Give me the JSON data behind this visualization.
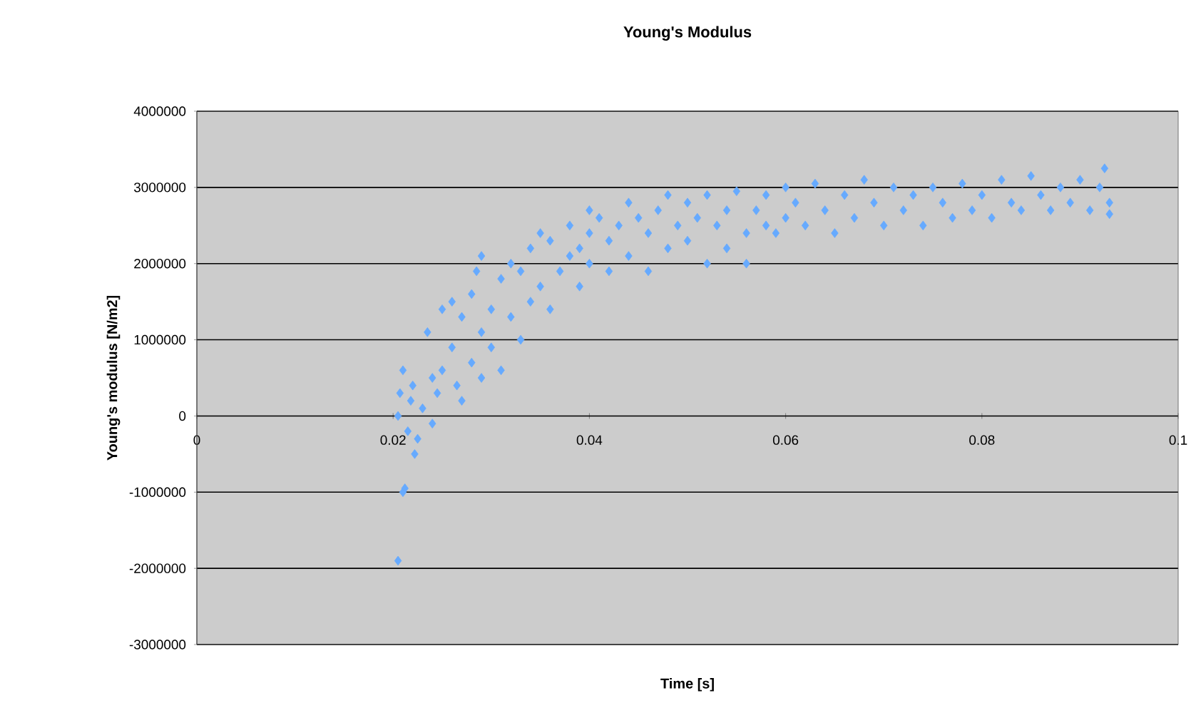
{
  "chart_data": {
    "type": "scatter",
    "title": "Young's Modulus",
    "xlabel": "Time [s]",
    "ylabel": "Young's modulus [N/m2]",
    "xlim": [
      0,
      0.1
    ],
    "xticks": [
      0,
      0.02,
      0.04,
      0.06,
      0.08,
      0.1
    ],
    "ylim": [
      -3000000,
      4000000
    ],
    "yticks": [
      -3000000,
      -2000000,
      -1000000,
      0,
      1000000,
      2000000,
      3000000,
      4000000
    ],
    "grid": "y",
    "marker": "diamond",
    "series": [
      {
        "color": "#66aaff",
        "x": [
          0.0205,
          0.021,
          0.0212,
          0.0205,
          0.0207,
          0.021,
          0.0215,
          0.022,
          0.0222,
          0.0225,
          0.0218,
          0.023,
          0.0235,
          0.024,
          0.024,
          0.025,
          0.0245,
          0.025,
          0.026,
          0.026,
          0.0265,
          0.027,
          0.027,
          0.028,
          0.028,
          0.0285,
          0.029,
          0.029,
          0.029,
          0.03,
          0.03,
          0.031,
          0.031,
          0.032,
          0.032,
          0.033,
          0.033,
          0.034,
          0.034,
          0.035,
          0.035,
          0.036,
          0.036,
          0.037,
          0.038,
          0.038,
          0.039,
          0.039,
          0.04,
          0.04,
          0.04,
          0.041,
          0.042,
          0.042,
          0.043,
          0.044,
          0.044,
          0.045,
          0.046,
          0.046,
          0.047,
          0.048,
          0.048,
          0.049,
          0.05,
          0.05,
          0.051,
          0.052,
          0.052,
          0.053,
          0.054,
          0.054,
          0.055,
          0.056,
          0.056,
          0.057,
          0.058,
          0.058,
          0.059,
          0.06,
          0.06,
          0.061,
          0.062,
          0.063,
          0.064,
          0.065,
          0.066,
          0.067,
          0.068,
          0.069,
          0.07,
          0.071,
          0.072,
          0.073,
          0.074,
          0.075,
          0.076,
          0.077,
          0.078,
          0.079,
          0.08,
          0.081,
          0.082,
          0.083,
          0.084,
          0.085,
          0.086,
          0.087,
          0.088,
          0.089,
          0.09,
          0.091,
          0.092,
          0.0925,
          0.093,
          0.093
        ],
        "values": [
          -1900000,
          -1000000,
          -950000,
          0,
          300000,
          600000,
          -200000,
          400000,
          -500000,
          -300000,
          200000,
          100000,
          1100000,
          500000,
          -100000,
          1400000,
          300000,
          600000,
          1500000,
          900000,
          400000,
          1300000,
          200000,
          1600000,
          700000,
          1900000,
          2100000,
          1100000,
          500000,
          1400000,
          900000,
          1800000,
          600000,
          2000000,
          1300000,
          1900000,
          1000000,
          2200000,
          1500000,
          2400000,
          1700000,
          2300000,
          1400000,
          1900000,
          2500000,
          2100000,
          2200000,
          1700000,
          2700000,
          2400000,
          2000000,
          2600000,
          2300000,
          1900000,
          2500000,
          2800000,
          2100000,
          2600000,
          2400000,
          1900000,
          2700000,
          2200000,
          2900000,
          2500000,
          2800000,
          2300000,
          2600000,
          2000000,
          2900000,
          2500000,
          2700000,
          2200000,
          2950000,
          2400000,
          2000000,
          2700000,
          2900000,
          2500000,
          2400000,
          3000000,
          2600000,
          2800000,
          2500000,
          3050000,
          2700000,
          2400000,
          2900000,
          2600000,
          3100000,
          2800000,
          2500000,
          3000000,
          2700000,
          2900000,
          2500000,
          3000000,
          2800000,
          2600000,
          3050000,
          2700000,
          2900000,
          2600000,
          3100000,
          2800000,
          2700000,
          3150000,
          2900000,
          2700000,
          3000000,
          2800000,
          3100000,
          2700000,
          3000000,
          3250000,
          2800000,
          2650000
        ]
      }
    ]
  }
}
